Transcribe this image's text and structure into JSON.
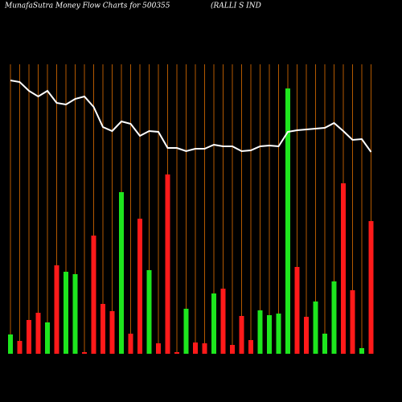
{
  "chart_data": {
    "type": "bar",
    "title": "MunafaSutra  Money Flow  Charts for 500355",
    "subtitle": "(RALLI                    S IND",
    "categories": [
      null,
      null,
      null,
      null,
      null,
      null,
      null,
      null,
      null,
      null,
      null,
      null,
      null,
      null,
      null,
      null,
      null,
      null,
      null,
      null,
      null,
      null,
      null,
      null,
      null,
      null,
      null,
      null,
      null,
      null,
      null,
      null,
      null,
      null,
      null,
      null,
      null,
      null,
      null,
      null
    ],
    "ylim": [
      0,
      440
    ],
    "series": [
      {
        "type": "bar",
        "values": [
          24,
          16,
          42,
          51,
          39,
          110,
          102,
          99,
          2,
          147,
          62,
          53,
          201,
          25,
          168,
          104,
          13,
          223,
          2,
          56,
          14,
          13,
          75,
          81,
          11,
          47,
          17,
          54,
          48,
          50,
          330,
          108,
          46,
          65,
          25,
          90,
          212,
          79,
          7,
          165
        ],
        "colors": [
          "#1ee61e",
          "#ff1a1a",
          "#ff1a1a",
          "#ff1a1a",
          "#1ee61e",
          "#ff1a1a",
          "#1ee61e",
          "#1ee61e",
          "#ff1a1a",
          "#ff1a1a",
          "#ff1a1a",
          "#ff1a1a",
          "#1ee61e",
          "#ff1a1a",
          "#ff1a1a",
          "#1ee61e",
          "#ff1a1a",
          "#ff1a1a",
          "#ff1a1a",
          "#1ee61e",
          "#ff1a1a",
          "#ff1a1a",
          "#1ee61e",
          "#ff1a1a",
          "#ff1a1a",
          "#ff1a1a",
          "#ff1a1a",
          "#1ee61e",
          "#1ee61e",
          "#1ee61e",
          "#1ee61e",
          "#ff1a1a",
          "#ff1a1a",
          "#1ee61e",
          "#1ee61e",
          "#1ee61e",
          "#ff1a1a",
          "#ff1a1a",
          "#1ee61e",
          "#ff1a1a"
        ]
      },
      {
        "type": "line",
        "color": "#ffffff",
        "values": [
          340,
          338,
          327,
          320,
          327,
          312,
          310,
          317,
          320,
          307,
          282,
          277,
          289,
          286,
          271,
          277,
          276,
          256,
          256,
          252,
          255,
          255,
          260,
          258,
          258,
          252,
          253,
          258,
          259,
          258,
          276,
          278,
          279,
          280,
          281,
          287,
          277,
          266,
          267,
          251
        ]
      }
    ]
  }
}
